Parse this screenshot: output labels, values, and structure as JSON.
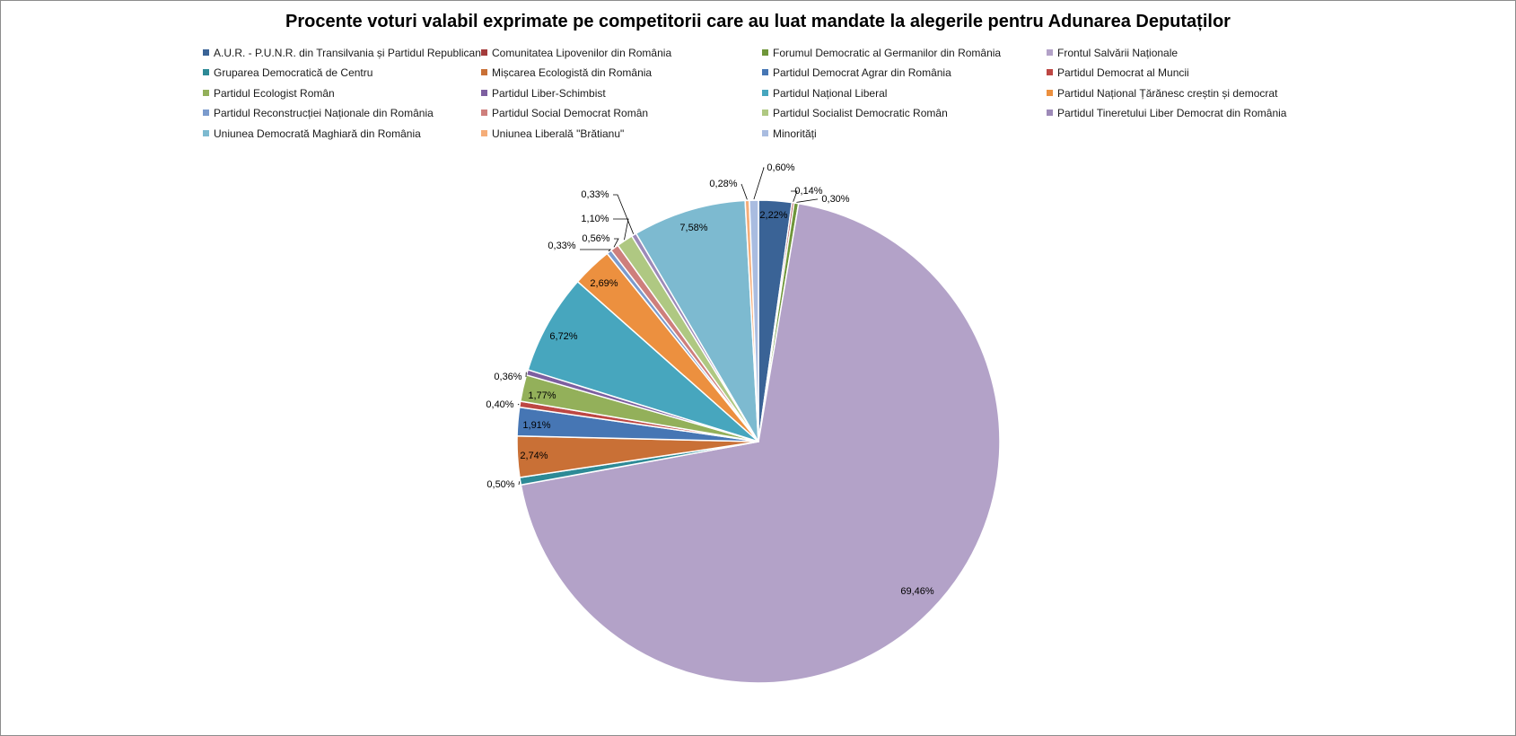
{
  "chart_data": {
    "type": "pie",
    "title": "Procente voturi valabil exprimate pe competitorii care au luat mandate la alegerile pentru Adunarea Deputaților",
    "legend_position": "top",
    "slices": [
      {
        "label": "A.U.R. - P.U.N.R. din Transilvania și Partidul Republican",
        "value": 2.22,
        "display": "2,22%",
        "color": "#3a6396"
      },
      {
        "label": "Comunitatea Lipovenilor din România",
        "value": 0.14,
        "display": "0,14%",
        "color": "#a33b3b"
      },
      {
        "label": "Forumul Democratic al Germanilor din România",
        "value": 0.3,
        "display": "0,30%",
        "color": "#6f963a"
      },
      {
        "label": "Frontul Salvării Naționale",
        "value": 69.46,
        "display": "69,46%",
        "color": "#b3a2c8"
      },
      {
        "label": "Gruparea Democratică de Centru",
        "value": 0.5,
        "display": "0,50%",
        "color": "#2d8a96"
      },
      {
        "label": "Mișcarea Ecologistă din România",
        "value": 2.74,
        "display": "2,74%",
        "color": "#c97036"
      },
      {
        "label": "Partidul Democrat Agrar din România",
        "value": 1.91,
        "display": "1,91%",
        "color": "#4676b4"
      },
      {
        "label": "Partidul Democrat al Muncii",
        "value": 0.4,
        "display": "0,40%",
        "color": "#bd4743"
      },
      {
        "label": "Partidul Ecologist Român",
        "value": 1.77,
        "display": "1,77%",
        "color": "#93b05a"
      },
      {
        "label": "Partidul Liber-Schimbist",
        "value": 0.36,
        "display": "0,36%",
        "color": "#7d5fa0"
      },
      {
        "label": "Partidul Național Liberal",
        "value": 6.72,
        "display": "6,72%",
        "color": "#47a6be"
      },
      {
        "label": "Partidul Național Țărănesc creștin și democrat",
        "value": 2.69,
        "display": "2,69%",
        "color": "#ec903f"
      },
      {
        "label": "Partidul Reconstrucției Naționale din România",
        "value": 0.33,
        "display": "0,33%",
        "color": "#7b9bcd"
      },
      {
        "label": "Partidul Social Democrat Român",
        "value": 0.56,
        "display": "0,56%",
        "color": "#ce7f7c"
      },
      {
        "label": "Partidul Socialist Democratic Român",
        "value": 1.1,
        "display": "1,10%",
        "color": "#afc882"
      },
      {
        "label": "Partidul Tineretului Liber Democrat din România",
        "value": 0.33,
        "display": "0,33%",
        "color": "#9d8ab8"
      },
      {
        "label": "Uniunea Democrată Maghiară din România",
        "value": 7.58,
        "display": "7,58%",
        "color": "#7dbad0"
      },
      {
        "label": "Uniunea Liberală \"Brătianu\"",
        "value": 0.28,
        "display": "0,28%",
        "color": "#f5ad79"
      },
      {
        "label": "Minorități",
        "value": 0.6,
        "display": "0,60%",
        "color": "#a9bce0"
      }
    ]
  }
}
